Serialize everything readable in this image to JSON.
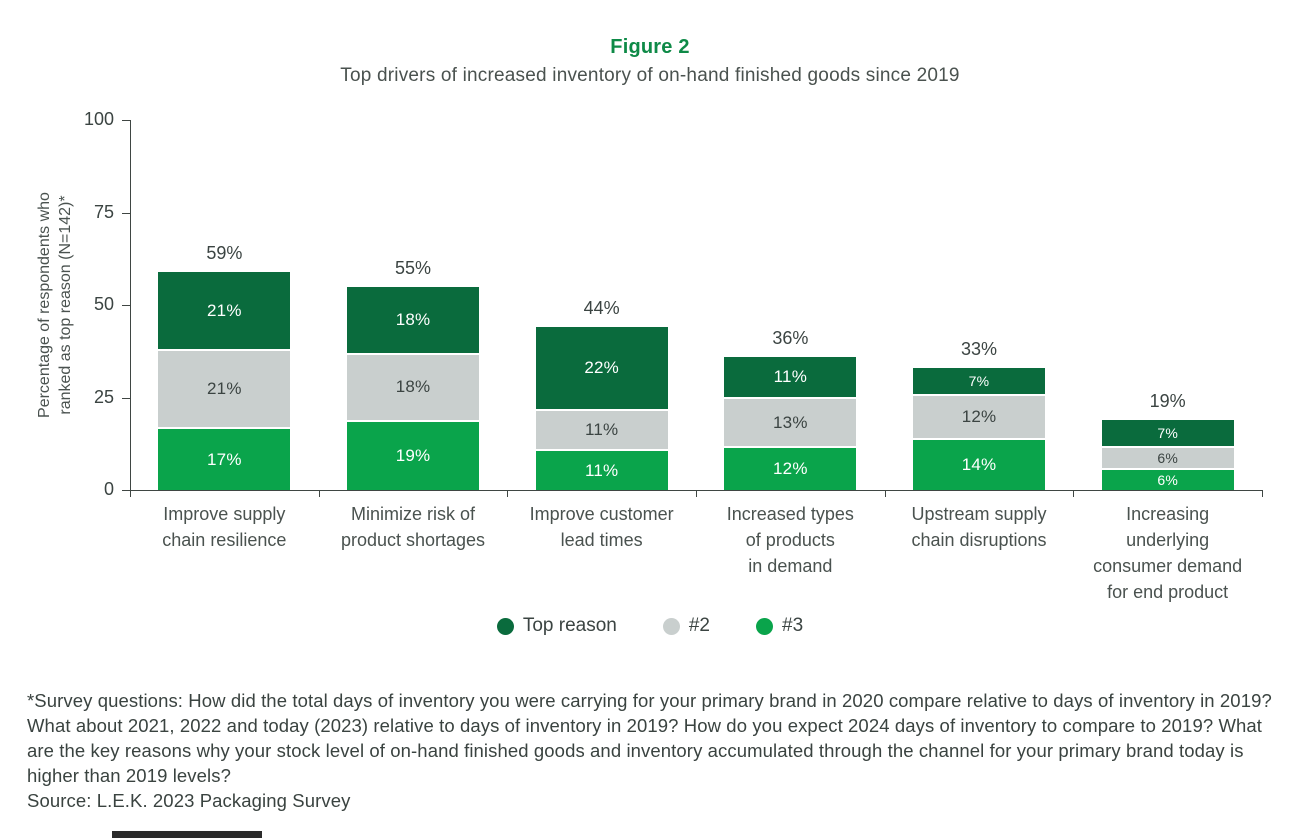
{
  "header": {
    "figure_label": "Figure 2",
    "subtitle": "Top drivers of increased inventory of on-hand finished goods since 2019"
  },
  "chart_data": {
    "type": "bar",
    "stacked": true,
    "title": "Top drivers of increased inventory of on-hand finished goods since 2019",
    "ylabel_lines": [
      "Percentage of respondents who",
      "ranked as top reason (N=142)*"
    ],
    "ylim": [
      0,
      100
    ],
    "yticks": [
      0,
      25,
      50,
      75,
      100
    ],
    "grid": false,
    "legend_position": "bottom",
    "value_suffix": "%",
    "categories": [
      [
        "Improve supply",
        "chain resilience"
      ],
      [
        "Minimize risk of",
        "product shortages"
      ],
      [
        "Improve customer",
        "lead times"
      ],
      [
        "Increased types",
        "of products",
        "in demand"
      ],
      [
        "Upstream supply",
        "chain disruptions"
      ],
      [
        "Increasing",
        "underlying",
        "consumer demand",
        "for end product"
      ]
    ],
    "series": [
      {
        "name": "Top reason",
        "color": "#0a6b3d",
        "text_color": "#ffffff",
        "values": [
          21,
          18,
          22,
          11,
          7,
          7
        ]
      },
      {
        "name": "#2",
        "color": "#c9cfce",
        "text_color": "#3b4442",
        "values": [
          21,
          18,
          11,
          13,
          12,
          6
        ]
      },
      {
        "name": "#3",
        "color": "#0aa44b",
        "text_color": "#ffffff",
        "values": [
          17,
          19,
          11,
          12,
          14,
          6
        ]
      }
    ],
    "totals": [
      59,
      55,
      44,
      36,
      33,
      19
    ]
  },
  "footnote": "*Survey questions: How did the total days of inventory you were carrying for your primary brand in 2020 compare relative to days of inventory in 2019? What about 2021, 2022 and today (2023) relative to days of inventory in 2019? How do you expect 2024 days of inventory to compare to 2019? What are the key reasons why your stock level of on-hand finished goods and inventory accumulated through the channel for your primary brand today is higher than 2019 levels?",
  "source": "Source: L.E.K. 2023 Packaging Survey",
  "colors": {
    "accent_green": "#0e8a47",
    "dark_green": "#0a6b3d",
    "mid_gray": "#c9cfce",
    "bright_green": "#0aa44b",
    "axis": "#3f4643",
    "text": "#3b4442"
  }
}
